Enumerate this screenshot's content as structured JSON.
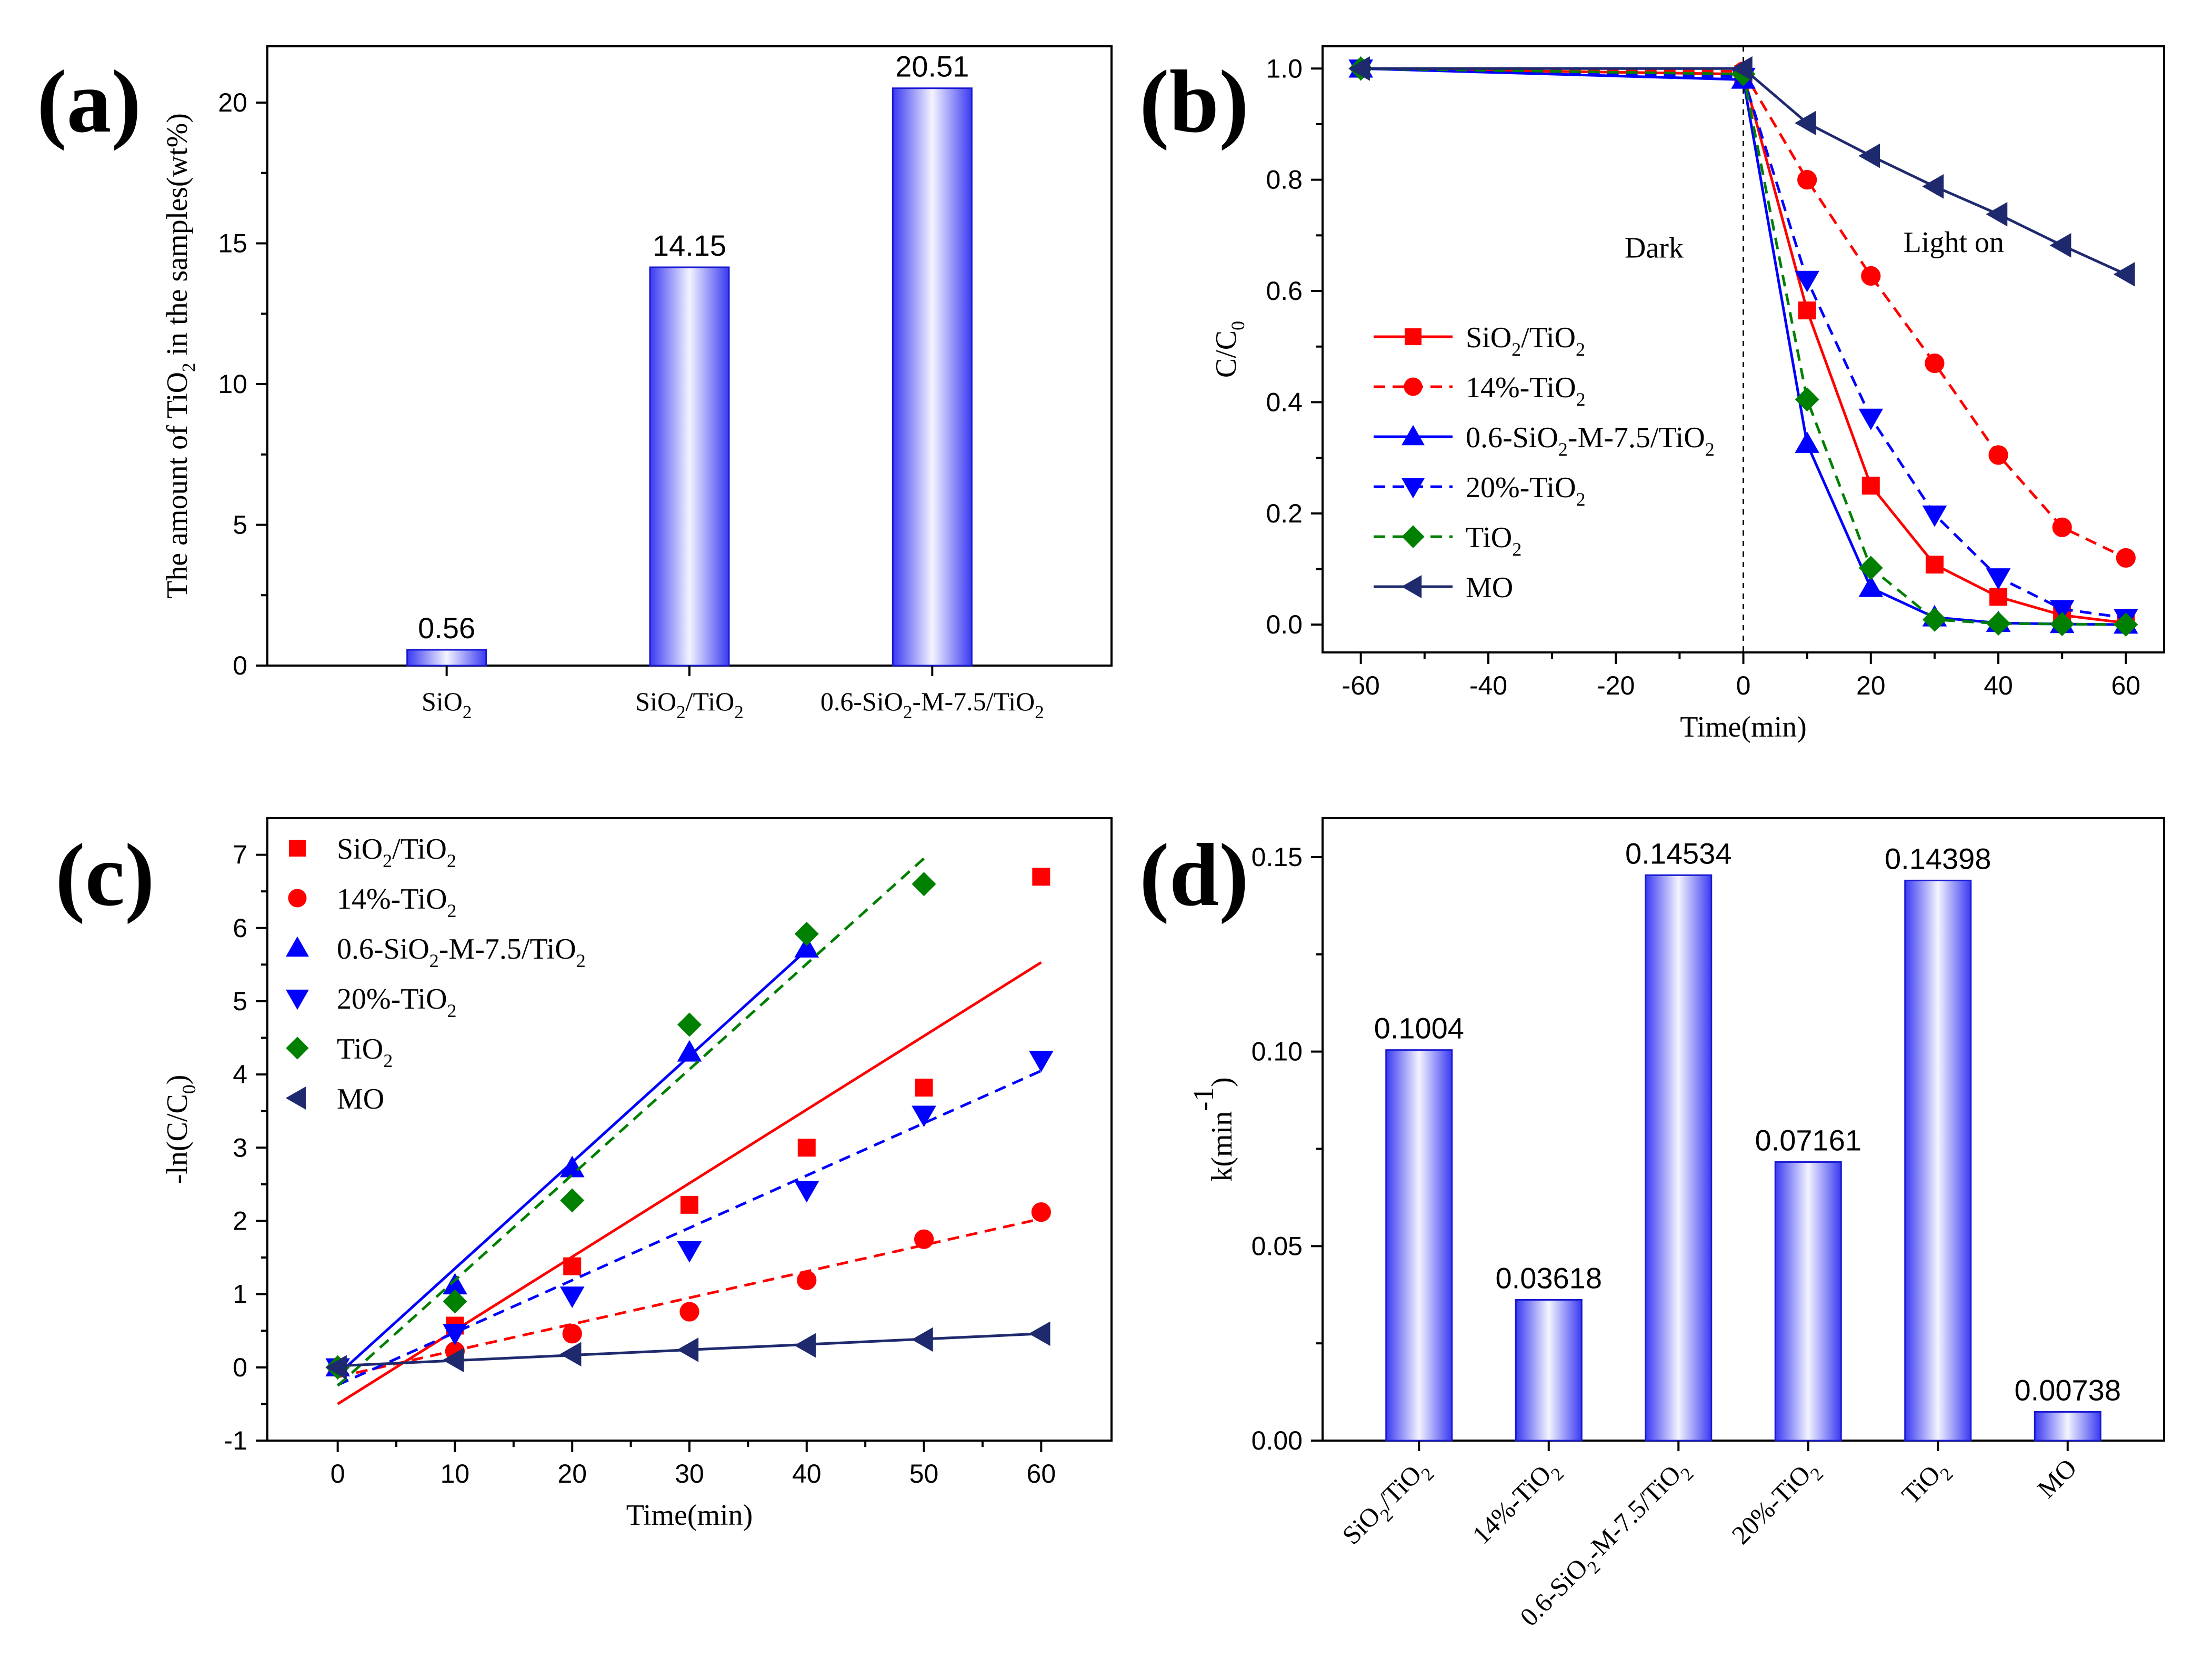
{
  "figure": {
    "colors": {
      "red": "#ff0000",
      "blue": "#0000ff",
      "green": "#008000",
      "navy": "#1f2a6e"
    }
  },
  "chart_data": [
    {
      "id": "a",
      "panel_label": "(a)",
      "type": "bar",
      "categories": [
        {
          "base": "SiO",
          "sub": "2",
          "rest": ""
        },
        {
          "base": "SiO",
          "sub": "2",
          "rest": "/TiO",
          "sub2": "2"
        },
        {
          "base": "0.6-SiO",
          "sub": "2",
          "rest": "-M-7.5/TiO",
          "sub2": "2"
        }
      ],
      "values": [
        0.56,
        14.15,
        20.51
      ],
      "value_labels": [
        "0.56",
        "14.15",
        "20.51"
      ],
      "ylabel": {
        "pre": "The amount of TiO",
        "sub": "2",
        "post": " in the samples(wt%)"
      },
      "ylim": [
        0,
        22
      ],
      "yticks": [
        0,
        5,
        10,
        15,
        20
      ]
    },
    {
      "id": "b",
      "panel_label": "(b)",
      "type": "line",
      "xlabel": "Time(min)",
      "ylabel": {
        "pre": "C/C",
        "sub": "0"
      },
      "xlim": [
        -66,
        66
      ],
      "ylim": [
        -0.05,
        1.04
      ],
      "xticks": [
        -60,
        -40,
        -20,
        0,
        20,
        40,
        60
      ],
      "yticks": [
        0.0,
        0.2,
        0.4,
        0.6,
        0.8,
        1.0
      ],
      "ytick_labels": [
        "0.0",
        "0.2",
        "0.4",
        "0.6",
        "0.8",
        "1.0"
      ],
      "annotations": [
        {
          "text": "Dark",
          "x": -14,
          "y": 0.66
        },
        {
          "text": "Light on",
          "x": 33,
          "y": 0.67
        }
      ],
      "divider_x": 0,
      "legend_position": "center-left",
      "series": [
        {
          "name": "SiO2/TiO2",
          "label": {
            "pre": "SiO",
            "sub": "2",
            "post": "/TiO",
            "sub2": "2"
          },
          "color": "#ff0000",
          "marker": "square",
          "dash": false,
          "x": [
            -60,
            0,
            10,
            20,
            30,
            40,
            50,
            60
          ],
          "y": [
            1.0,
            0.99,
            0.565,
            0.25,
            0.108,
            0.05,
            0.017,
            0.003
          ]
        },
        {
          "name": "14%-TiO2",
          "label": {
            "pre": "14%-TiO",
            "sub": "2"
          },
          "color": "#ff0000",
          "marker": "circle",
          "dash": true,
          "x": [
            -60,
            0,
            10,
            20,
            30,
            40,
            50,
            60
          ],
          "y": [
            1.0,
            0.995,
            0.8,
            0.627,
            0.47,
            0.305,
            0.175,
            0.12
          ]
        },
        {
          "name": "0.6-SiO2-M-7.5/TiO2",
          "label": {
            "pre": "0.6-SiO",
            "sub": "2",
            "post": "-M-7.5/TiO",
            "sub2": "2"
          },
          "color": "#0000ff",
          "marker": "triangle-up",
          "dash": false,
          "x": [
            -60,
            0,
            10,
            20,
            30,
            40,
            50,
            60
          ],
          "y": [
            1.0,
            0.98,
            0.325,
            0.066,
            0.013,
            0.003,
            0.001,
            0.0
          ]
        },
        {
          "name": "20%-TiO2",
          "label": {
            "pre": "20%-TiO",
            "sub": "2"
          },
          "color": "#0000ff",
          "marker": "triangle-down",
          "dash": true,
          "x": [
            -60,
            0,
            10,
            20,
            30,
            40,
            50,
            60
          ],
          "y": [
            1.0,
            0.985,
            0.62,
            0.372,
            0.198,
            0.085,
            0.028,
            0.012
          ]
        },
        {
          "name": "TiO2",
          "label": {
            "pre": "TiO",
            "sub": "2"
          },
          "color": "#008000",
          "marker": "diamond",
          "dash": true,
          "x": [
            -60,
            0,
            10,
            20,
            30,
            40,
            50,
            60
          ],
          "y": [
            1.0,
            0.99,
            0.405,
            0.102,
            0.009,
            0.002,
            0.001,
            0.0
          ]
        },
        {
          "name": "MO",
          "label": {
            "pre": "MO"
          },
          "color": "#1f2a6e",
          "marker": "triangle-left",
          "dash": false,
          "x": [
            -60,
            0,
            10,
            20,
            30,
            40,
            50,
            60
          ],
          "y": [
            1.0,
            1.0,
            0.902,
            0.843,
            0.788,
            0.738,
            0.682,
            0.63
          ]
        }
      ]
    },
    {
      "id": "c",
      "panel_label": "(c)",
      "type": "scatter",
      "xlabel": "Time(min)",
      "ylabel": {
        "pre": "-ln(C/C",
        "sub": "0",
        "post": ")"
      },
      "xlim": [
        -6,
        66
      ],
      "ylim": [
        -1,
        7.5
      ],
      "xticks": [
        0,
        10,
        20,
        30,
        40,
        50,
        60
      ],
      "yticks": [
        -1,
        0,
        1,
        2,
        3,
        4,
        5,
        6,
        7
      ],
      "legend_position": "top-left",
      "series": [
        {
          "name": "SiO2/TiO2",
          "label": {
            "pre": "SiO",
            "sub": "2",
            "post": "/TiO",
            "sub2": "2"
          },
          "color": "#ff0000",
          "marker": "square",
          "dash": false,
          "x": [
            0,
            10,
            20,
            30,
            40,
            50,
            60
          ],
          "y": [
            0.0,
            0.57,
            1.38,
            2.22,
            3.0,
            3.82,
            6.7
          ],
          "fit": {
            "x": [
              0,
              60
            ],
            "y": [
              -0.5,
              5.53
            ]
          }
        },
        {
          "name": "14%-TiO2",
          "label": {
            "pre": "14%-TiO",
            "sub": "2"
          },
          "color": "#ff0000",
          "marker": "circle",
          "dash": true,
          "x": [
            0,
            10,
            20,
            30,
            40,
            50,
            60
          ],
          "y": [
            0.0,
            0.22,
            0.46,
            0.76,
            1.19,
            1.75,
            2.12
          ],
          "fit": {
            "x": [
              0,
              60
            ],
            "y": [
              -0.13,
              2.03
            ]
          }
        },
        {
          "name": "0.6-SiO2-M-7.5/TiO2",
          "label": {
            "pre": "0.6-SiO",
            "sub": "2",
            "post": "-M-7.5/TiO",
            "sub2": "2"
          },
          "color": "#0000ff",
          "marker": "triangle-up",
          "dash": false,
          "x": [
            0,
            10,
            20,
            30,
            40
          ],
          "y": [
            0.0,
            1.12,
            2.72,
            4.3,
            5.72
          ],
          "fit": {
            "x": [
              0,
              40
            ],
            "y": [
              -0.1,
              5.7
            ]
          }
        },
        {
          "name": "20%-TiO2",
          "label": {
            "pre": "20%-TiO",
            "sub": "2"
          },
          "color": "#0000ff",
          "marker": "triangle-down",
          "dash": true,
          "x": [
            0,
            10,
            20,
            30,
            40,
            50,
            60
          ],
          "y": [
            0.0,
            0.47,
            0.98,
            1.6,
            2.42,
            3.45,
            4.2
          ],
          "fit": {
            "x": [
              0,
              60
            ],
            "y": [
              -0.24,
              4.05
            ]
          }
        },
        {
          "name": "TiO2",
          "label": {
            "pre": "TiO",
            "sub": "2"
          },
          "color": "#008000",
          "marker": "diamond",
          "dash": true,
          "x": [
            0,
            10,
            20,
            30,
            40,
            50
          ],
          "y": [
            0.0,
            0.9,
            2.28,
            4.68,
            5.92,
            6.6
          ],
          "fit": {
            "x": [
              0,
              50
            ],
            "y": [
              -0.25,
              6.95
            ]
          }
        },
        {
          "name": "MO",
          "label": {
            "pre": "MO"
          },
          "color": "#1f2a6e",
          "marker": "triangle-left",
          "dash": false,
          "x": [
            0,
            10,
            20,
            30,
            40,
            50,
            60
          ],
          "y": [
            0.0,
            0.1,
            0.18,
            0.24,
            0.3,
            0.38,
            0.46
          ],
          "fit": {
            "x": [
              0,
              60
            ],
            "y": [
              0.02,
              0.46
            ]
          }
        }
      ]
    },
    {
      "id": "d",
      "panel_label": "(d)",
      "type": "bar",
      "categories": [
        {
          "base": "SiO",
          "sub": "2",
          "rest": "/TiO",
          "sub2": "2"
        },
        {
          "base": "14%-TiO",
          "sub": "2"
        },
        {
          "base": "0.6-SiO",
          "sub": "2",
          "rest": "-M-7.5/TiO",
          "sub2": "2"
        },
        {
          "base": "20%-TiO",
          "sub": "2"
        },
        {
          "base": "TiO",
          "sub": "2"
        },
        {
          "base": "MO"
        }
      ],
      "values": [
        0.1004,
        0.03618,
        0.14534,
        0.07161,
        0.14398,
        0.00738
      ],
      "value_labels": [
        "0.1004",
        "0.03618",
        "0.14534",
        "0.07161",
        "0.14398",
        "0.00738"
      ],
      "ylabel": {
        "pre": "k(min",
        "sup": "-1",
        "post": ")"
      },
      "ylim": [
        0,
        0.16
      ],
      "yticks": [
        0.0,
        0.05,
        0.1,
        0.15
      ],
      "ytick_labels": [
        "0.00",
        "0.05",
        "0.10",
        "0.15"
      ]
    }
  ]
}
